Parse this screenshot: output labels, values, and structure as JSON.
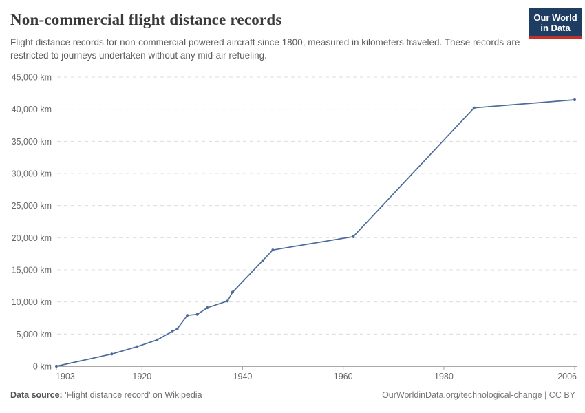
{
  "header": {
    "title": "Non-commercial flight distance records",
    "subtitle": "Flight distance records for non-commercial powered aircraft since 1800, measured in kilometers traveled. These records are restricted to journeys undertaken without any mid-air refueling."
  },
  "logo": {
    "line1": "Our World",
    "line2": "in Data",
    "bg_color": "#1d3d63",
    "stripe_color": "#c5302b"
  },
  "chart_data": {
    "type": "line",
    "title": "Non-commercial flight distance records",
    "unit": "km",
    "xlabel": "",
    "ylabel": "",
    "x": [
      1903,
      1914,
      1919,
      1923,
      1926,
      1927,
      1929,
      1931,
      1933,
      1937,
      1938,
      1944,
      1946,
      1962,
      1986,
      2006
    ],
    "y": [
      0.26,
      1900,
      3030,
      4088,
      5396,
      5809,
      7905,
      8066,
      9104,
      10148,
      11520,
      16435,
      18082,
      20169,
      40212,
      41467
    ],
    "xlim": [
      1903,
      2006
    ],
    "ylim": [
      0,
      45000
    ],
    "x_ticks": {
      "values": [
        1903,
        1920,
        1940,
        1960,
        1980,
        2006
      ],
      "labels": [
        "1903",
        "1920",
        "1940",
        "1960",
        "1980",
        "2006"
      ]
    },
    "y_ticks": {
      "values": [
        0,
        5000,
        10000,
        15000,
        20000,
        25000,
        30000,
        35000,
        40000,
        45000
      ],
      "labels": [
        "0 km",
        "5,000 km",
        "10,000 km",
        "15,000 km",
        "20,000 km",
        "25,000 km",
        "30,000 km",
        "35,000 km",
        "40,000 km",
        "45,000 km"
      ]
    },
    "grid": "horizontal dashed",
    "legend": "none",
    "line_color": "#4c6a9c",
    "grid_color": "#dcdcdc",
    "axis_color": "#a8a8a8",
    "tick_label_color": "#666666"
  },
  "footer": {
    "source_label": "Data source:",
    "source_text": "'Flight distance record' on Wikipedia",
    "credit": "OurWorldinData.org/technological-change | CC BY"
  }
}
